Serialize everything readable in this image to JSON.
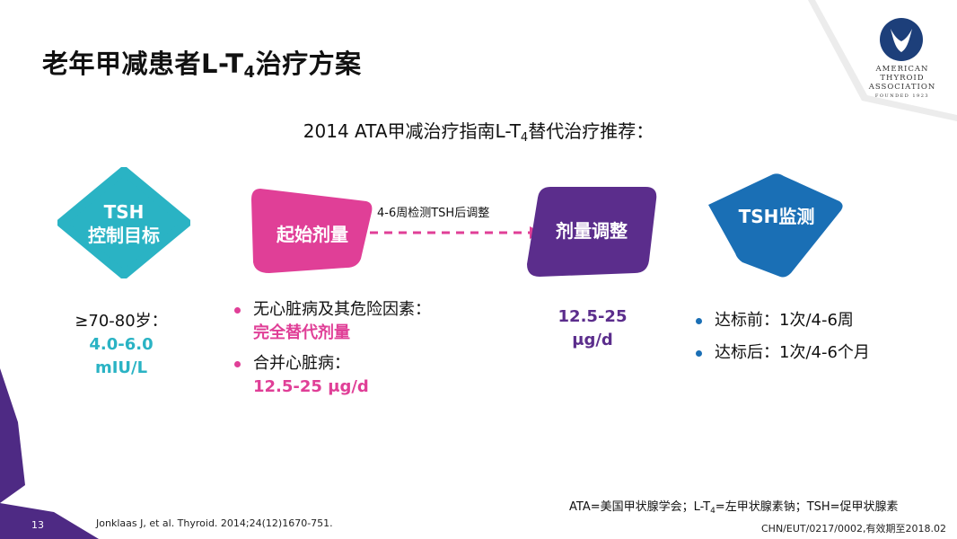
{
  "title": {
    "main": "老年甲减患者L-T",
    "sub": "4",
    "tail": "治疗方案"
  },
  "subtitle": {
    "main": "2014 ATA甲减治疗指南L-T",
    "sub": "4",
    "tail": "替代治疗推荐："
  },
  "logo": {
    "line1": "AMERICAN",
    "line2": "THYROID",
    "line3": "ASSOCIATION",
    "line4": "FOUNDED 1923"
  },
  "shapes": {
    "tsh_target": {
      "line1": "TSH",
      "line2": "控制目标"
    },
    "start_dose": {
      "label": "起始剂量"
    },
    "dose_adjust": {
      "label": "剂量调整"
    },
    "tsh_monitor": {
      "label": "TSH监测"
    }
  },
  "arrow_label": "4-6周检测TSH后调整",
  "col1": {
    "line1": "≥70-80岁：",
    "value1": "4.0-6.0",
    "value2": "mIU/L"
  },
  "col2": {
    "b1_text": "无心脏病及其危险因素：",
    "b1_value": "完全替代剂量",
    "b2_text": "合并心脏病：",
    "b2_value": "12.5-25 μg/d"
  },
  "col3": {
    "value1": "12.5-25",
    "value2": "μg/d"
  },
  "col4": {
    "b1": "达标前：1次/4-6周",
    "b2": "达标后：1次/4-6个月"
  },
  "footer": {
    "page_number": "13",
    "reference": "Jonklaas J, et al. Thyroid. 2014;24(12)1670-751.",
    "abbr_main": "ATA=美国甲状腺学会；L-T",
    "abbr_sub": "4",
    "abbr_tail": "=左甲状腺素钠；TSH=促甲状腺素",
    "code": "CHN/EUT/0217/0002,有效期至2018.02"
  },
  "colors": {
    "teal": "#2ab3c4",
    "magenta": "#e03f97",
    "purple": "#5b2d8c",
    "blue": "#1a6fb5"
  }
}
